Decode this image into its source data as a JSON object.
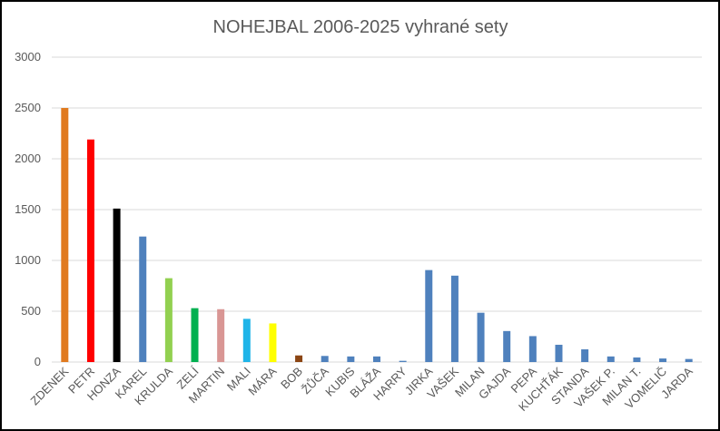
{
  "chart_data": {
    "type": "bar",
    "title": "NOHEJBAL 2006-2025 vyhrané sety",
    "xlabel": "",
    "ylabel": "",
    "ylim": [
      0,
      3000
    ],
    "yticks": [
      0,
      500,
      1000,
      1500,
      2000,
      2500,
      3000
    ],
    "grid": true,
    "legend": "none",
    "categories": [
      "ZDENEK",
      "PETR",
      "HONZA",
      "KAREL",
      "KRULDA",
      "ZELÍ",
      "MARTIN",
      "MALI",
      "MÁRA",
      "BOB",
      "ŽŮČA",
      "KUBIS",
      "BLÁŽA",
      "HARRY",
      "JIRKA",
      "VAŠEK",
      "MILAN",
      "GAJDA",
      "PEPA",
      "KUCHŤÁK",
      "STANDA",
      "VAŠEK P.",
      "MILAN T.",
      "VOMELIČ",
      "JARDA"
    ],
    "values": [
      2500,
      2190,
      1510,
      1235,
      825,
      530,
      520,
      425,
      380,
      65,
      60,
      55,
      55,
      12,
      905,
      850,
      485,
      305,
      255,
      170,
      125,
      55,
      45,
      35,
      30
    ],
    "colors": [
      "#E07A1F",
      "#FF0000",
      "#000000",
      "#4F81BD",
      "#92D050",
      "#00B050",
      "#D99694",
      "#1FB4E8",
      "#FFFF00",
      "#8B4513",
      "#4F81BD",
      "#4F81BD",
      "#4F81BD",
      "#4F81BD",
      "#4F81BD",
      "#4F81BD",
      "#4F81BD",
      "#4F81BD",
      "#4F81BD",
      "#4F81BD",
      "#4F81BD",
      "#4F81BD",
      "#4F81BD",
      "#4F81BD",
      "#4F81BD"
    ]
  }
}
